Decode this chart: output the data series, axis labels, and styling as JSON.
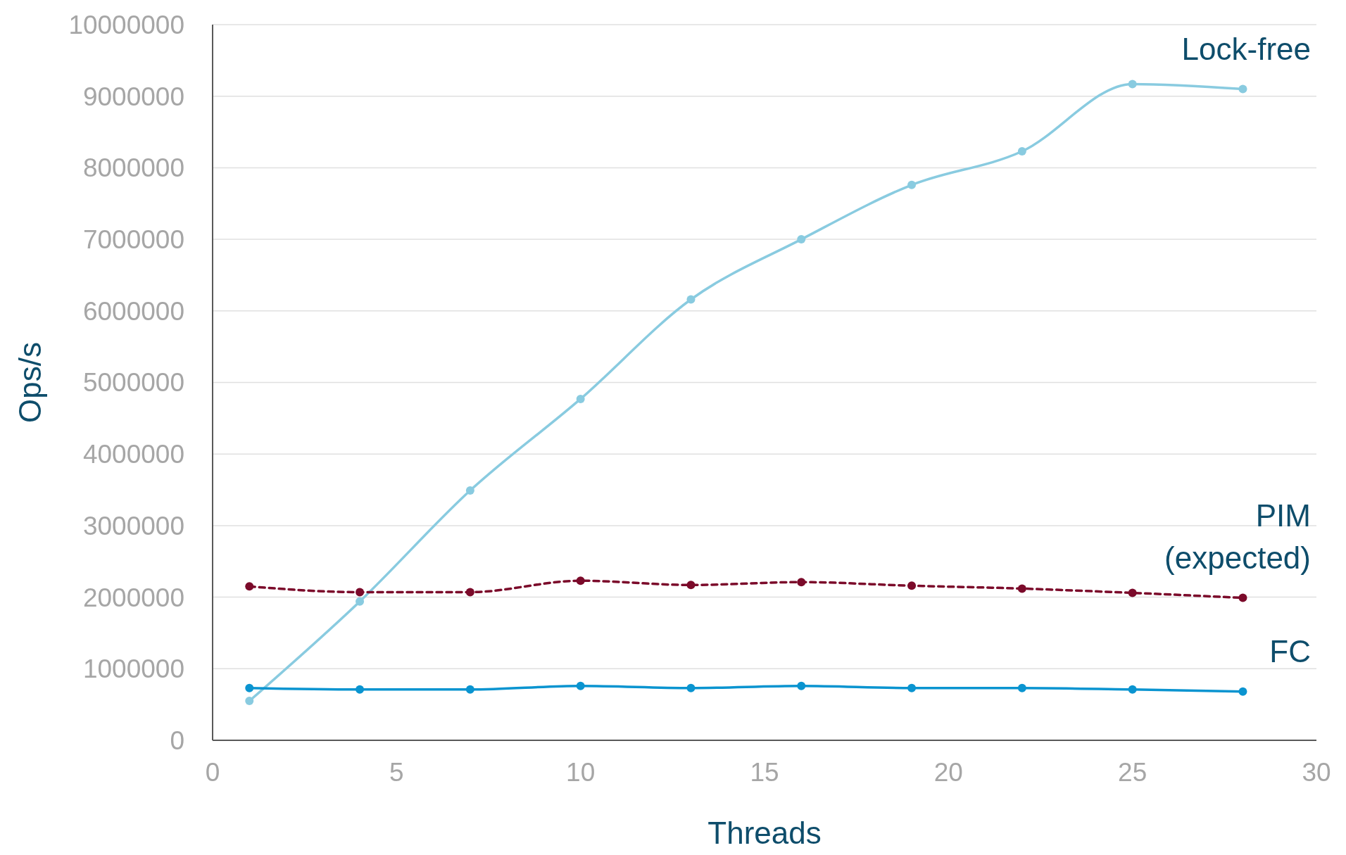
{
  "chart_data": {
    "type": "line",
    "xlabel": "Threads",
    "ylabel": "Ops/s",
    "x": [
      1,
      4,
      7,
      10,
      13,
      16,
      19,
      22,
      25,
      28
    ],
    "xlim": [
      0,
      30
    ],
    "xticks": [
      0,
      5,
      10,
      15,
      20,
      25,
      30
    ],
    "ylim": [
      0,
      10000000
    ],
    "yticks": [
      0,
      1000000,
      2000000,
      3000000,
      4000000,
      5000000,
      6000000,
      7000000,
      8000000,
      9000000,
      10000000
    ],
    "grid": "y",
    "marker": "circle",
    "series": [
      {
        "name": "Lock-free",
        "color": "#89cbe0",
        "line_style": "solid",
        "values": [
          550000,
          1940000,
          3490000,
          4770000,
          6160000,
          7000000,
          7760000,
          8230000,
          9170000,
          9100000
        ]
      },
      {
        "name": "PIM (expected)",
        "color": "#7b0a2a",
        "line_style": "dashed",
        "values": [
          2150000,
          2070000,
          2070000,
          2230000,
          2170000,
          2210000,
          2160000,
          2120000,
          2060000,
          1990000
        ]
      },
      {
        "name": "FC",
        "color": "#0a94d0",
        "line_style": "solid",
        "values": [
          730000,
          710000,
          710000,
          760000,
          730000,
          760000,
          730000,
          730000,
          710000,
          680000
        ]
      }
    ]
  }
}
